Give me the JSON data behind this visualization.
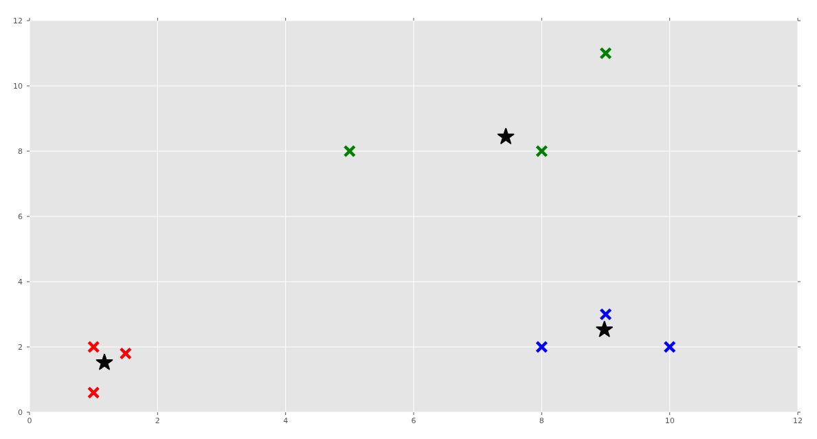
{
  "chart_data": {
    "type": "scatter",
    "xlim": [
      0,
      12
    ],
    "ylim": [
      0,
      12
    ],
    "xticks": [
      0,
      2,
      4,
      6,
      8,
      10,
      12
    ],
    "yticks": [
      0,
      2,
      4,
      6,
      8,
      10,
      12
    ],
    "grid": true,
    "series": [
      {
        "color": "#ff0000",
        "marker": "cross",
        "x": [
          1,
          1.5,
          1
        ],
        "values": [
          2,
          1.8,
          0.6
        ]
      },
      {
        "color": "#008000",
        "marker": "cross",
        "x": [
          5,
          8,
          9
        ],
        "values": [
          8,
          8,
          11
        ]
      },
      {
        "color": "#0000ff",
        "marker": "cross",
        "x": [
          8,
          9,
          10
        ],
        "values": [
          2,
          3,
          2
        ]
      },
      {
        "color": "#000000",
        "marker": "star",
        "x": [
          1.17,
          7.44,
          8.98
        ],
        "values": [
          1.52,
          8.44,
          2.53
        ]
      }
    ]
  }
}
